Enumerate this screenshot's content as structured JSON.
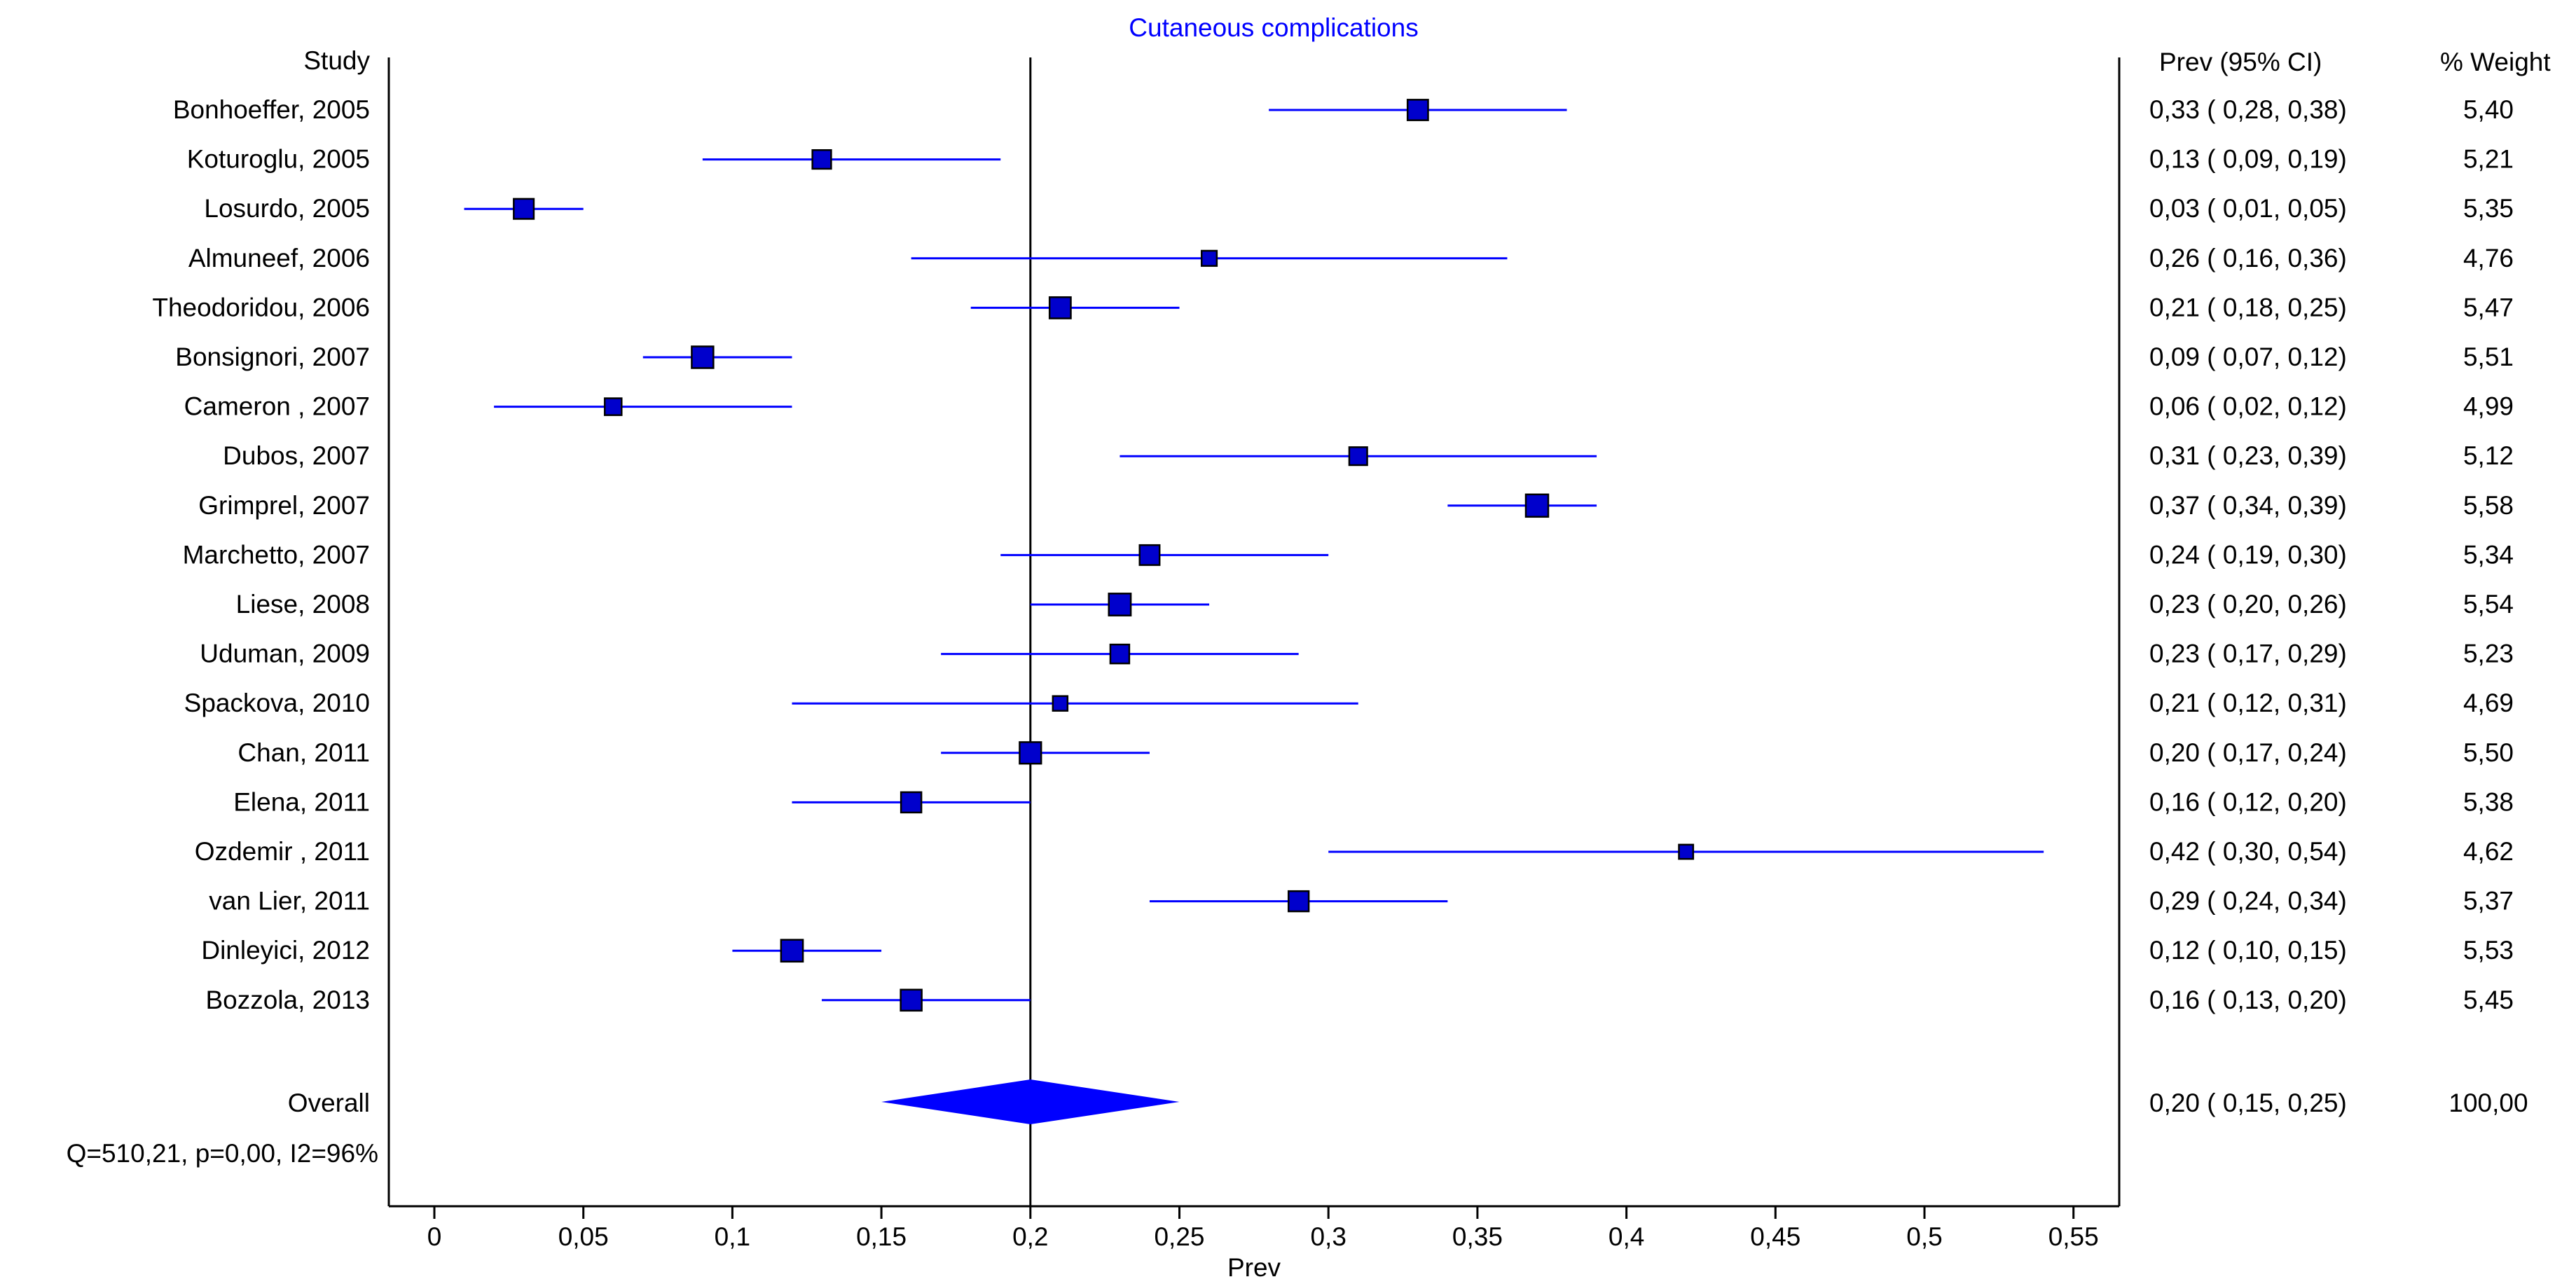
{
  "chart_data": {
    "type": "forest",
    "title": "Cutaneous complications",
    "xlabel": "Prev",
    "xlim": [
      -0.015,
      0.56
    ],
    "x_ticks": [
      0,
      0.05,
      0.1,
      0.15,
      0.2,
      0.25,
      0.3,
      0.35,
      0.4,
      0.45,
      0.5,
      0.55
    ],
    "x_tick_labels": [
      "0",
      "0,05",
      "0,1",
      "0,15",
      "0,2",
      "0,25",
      "0,3",
      "0,35",
      "0,4",
      "0,45",
      "0,5",
      "0,55"
    ],
    "reference_line": 0.2,
    "column_headers": {
      "study": "Study",
      "prev": "Prev (95% CI)",
      "weight": "% Weight"
    },
    "studies": [
      {
        "study": "Bonhoeffer, 2005",
        "prev": 0.33,
        "lo": 0.28,
        "hi": 0.38,
        "weight": 5.4,
        "prev_text": "0,33",
        "lo_text": "0,28",
        "hi_text": "0,38",
        "weight_text": "5,40"
      },
      {
        "study": "Koturoglu, 2005",
        "prev": 0.13,
        "lo": 0.09,
        "hi": 0.19,
        "weight": 5.21,
        "prev_text": "0,13",
        "lo_text": "0,09",
        "hi_text": "0,19",
        "weight_text": "5,21"
      },
      {
        "study": "Losurdo, 2005",
        "prev": 0.03,
        "lo": 0.01,
        "hi": 0.05,
        "weight": 5.35,
        "prev_text": "0,03",
        "lo_text": "0,01",
        "hi_text": "0,05",
        "weight_text": "5,35"
      },
      {
        "study": "Almuneef, 2006",
        "prev": 0.26,
        "lo": 0.16,
        "hi": 0.36,
        "weight": 4.76,
        "prev_text": "0,26",
        "lo_text": "0,16",
        "hi_text": "0,36",
        "weight_text": "4,76"
      },
      {
        "study": "Theodoridou, 2006",
        "prev": 0.21,
        "lo": 0.18,
        "hi": 0.25,
        "weight": 5.47,
        "prev_text": "0,21",
        "lo_text": "0,18",
        "hi_text": "0,25",
        "weight_text": "5,47"
      },
      {
        "study": "Bonsignori, 2007",
        "prev": 0.09,
        "lo": 0.07,
        "hi": 0.12,
        "weight": 5.51,
        "prev_text": "0,09",
        "lo_text": "0,07",
        "hi_text": "0,12",
        "weight_text": "5,51"
      },
      {
        "study": "Cameron , 2007",
        "prev": 0.06,
        "lo": 0.02,
        "hi": 0.12,
        "weight": 4.99,
        "prev_text": "0,06",
        "lo_text": "0,02",
        "hi_text": "0,12",
        "weight_text": "4,99"
      },
      {
        "study": "Dubos, 2007",
        "prev": 0.31,
        "lo": 0.23,
        "hi": 0.39,
        "weight": 5.12,
        "prev_text": "0,31",
        "lo_text": "0,23",
        "hi_text": "0,39",
        "weight_text": "5,12"
      },
      {
        "study": "Grimprel, 2007",
        "prev": 0.37,
        "lo": 0.34,
        "hi": 0.39,
        "weight": 5.58,
        "prev_text": "0,37",
        "lo_text": "0,34",
        "hi_text": "0,39",
        "weight_text": "5,58"
      },
      {
        "study": "Marchetto, 2007",
        "prev": 0.24,
        "lo": 0.19,
        "hi": 0.3,
        "weight": 5.34,
        "prev_text": "0,24",
        "lo_text": "0,19",
        "hi_text": "0,30",
        "weight_text": "5,34"
      },
      {
        "study": "Liese, 2008",
        "prev": 0.23,
        "lo": 0.2,
        "hi": 0.26,
        "weight": 5.54,
        "prev_text": "0,23",
        "lo_text": "0,20",
        "hi_text": "0,26",
        "weight_text": "5,54"
      },
      {
        "study": "Uduman, 2009",
        "prev": 0.23,
        "lo": 0.17,
        "hi": 0.29,
        "weight": 5.23,
        "prev_text": "0,23",
        "lo_text": "0,17",
        "hi_text": "0,29",
        "weight_text": "5,23"
      },
      {
        "study": "Spackova, 2010",
        "prev": 0.21,
        "lo": 0.12,
        "hi": 0.31,
        "weight": 4.69,
        "prev_text": "0,21",
        "lo_text": "0,12",
        "hi_text": "0,31",
        "weight_text": "4,69"
      },
      {
        "study": "Chan, 2011",
        "prev": 0.2,
        "lo": 0.17,
        "hi": 0.24,
        "weight": 5.5,
        "prev_text": "0,20",
        "lo_text": "0,17",
        "hi_text": "0,24",
        "weight_text": "5,50"
      },
      {
        "study": "Elena, 2011",
        "prev": 0.16,
        "lo": 0.12,
        "hi": 0.2,
        "weight": 5.38,
        "prev_text": "0,16",
        "lo_text": "0,12",
        "hi_text": "0,20",
        "weight_text": "5,38"
      },
      {
        "study": "Ozdemir , 2011",
        "prev": 0.42,
        "lo": 0.3,
        "hi": 0.54,
        "weight": 4.62,
        "prev_text": "0,42",
        "lo_text": "0,30",
        "hi_text": "0,54",
        "weight_text": "4,62"
      },
      {
        "study": "van Lier, 2011",
        "prev": 0.29,
        "lo": 0.24,
        "hi": 0.34,
        "weight": 5.37,
        "prev_text": "0,29",
        "lo_text": "0,24",
        "hi_text": "0,34",
        "weight_text": "5,37"
      },
      {
        "study": "Dinleyici, 2012",
        "prev": 0.12,
        "lo": 0.1,
        "hi": 0.15,
        "weight": 5.53,
        "prev_text": "0,12",
        "lo_text": "0,10",
        "hi_text": "0,15",
        "weight_text": "5,53"
      },
      {
        "study": "Bozzola, 2013",
        "prev": 0.16,
        "lo": 0.13,
        "hi": 0.2,
        "weight": 5.45,
        "prev_text": "0,16",
        "lo_text": "0,13",
        "hi_text": "0,20",
        "weight_text": "5,45"
      }
    ],
    "overall": {
      "label": "Overall",
      "prev": 0.2,
      "lo": 0.15,
      "hi": 0.25,
      "weight": 100.0,
      "prev_text": "0,20",
      "lo_text": "0,15",
      "hi_text": "0,25",
      "weight_text": "100,00"
    },
    "heterogeneity": "Q=510,21, p=0,00, I2=96%",
    "colors": {
      "marker": "#0000cc",
      "ci_line": "#0000ff",
      "diamond": "#0000ff",
      "title": "#0000ff",
      "text": "#000000"
    }
  }
}
